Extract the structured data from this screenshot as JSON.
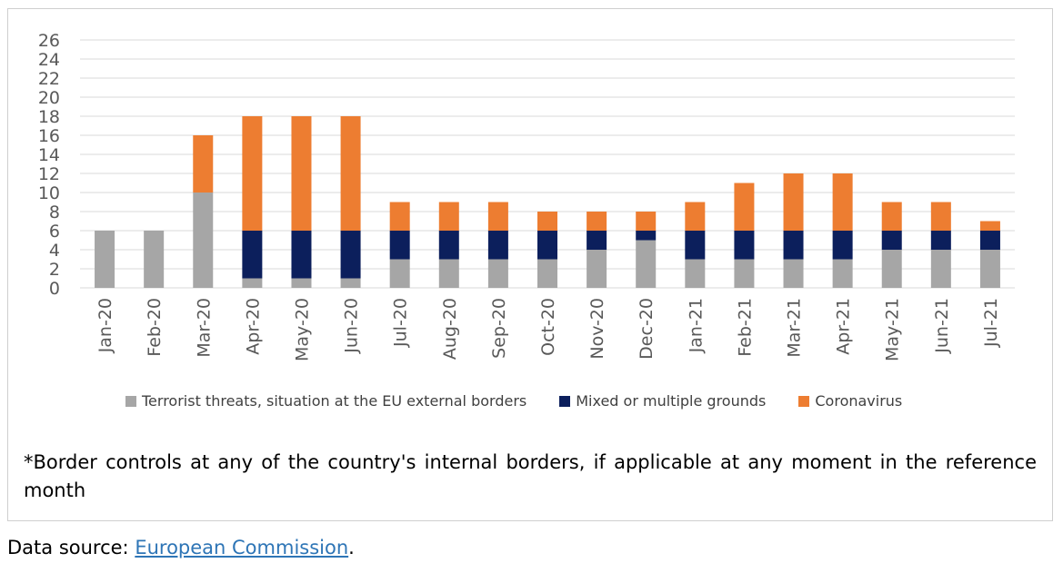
{
  "chart_data": {
    "type": "bar",
    "stacked": true,
    "categories": [
      "Jan-20",
      "Feb-20",
      "Mar-20",
      "Apr-20",
      "May-20",
      "Jun-20",
      "Jul-20",
      "Aug-20",
      "Sep-20",
      "Oct-20",
      "Nov-20",
      "Dec-20",
      "Jan-21",
      "Feb-21",
      "Mar-21",
      "Apr-21",
      "May-21",
      "Jun-21",
      "Jul-21"
    ],
    "series": [
      {
        "name": "Terrorist threats, situation at the EU external borders",
        "color": "#a6a6a6",
        "values": [
          6,
          6,
          10,
          1,
          1,
          1,
          3,
          3,
          3,
          3,
          4,
          5,
          3,
          3,
          3,
          3,
          4,
          4,
          4
        ]
      },
      {
        "name": "Mixed or multiple grounds",
        "color": "#0c1f5c",
        "values": [
          0,
          0,
          0,
          5,
          5,
          5,
          3,
          3,
          3,
          3,
          2,
          1,
          3,
          3,
          3,
          3,
          2,
          2,
          2
        ]
      },
      {
        "name": "Coronavirus",
        "color": "#ed7d31",
        "values": [
          0,
          0,
          6,
          12,
          12,
          12,
          3,
          3,
          3,
          2,
          2,
          2,
          3,
          5,
          6,
          6,
          3,
          3,
          1
        ]
      }
    ],
    "ylim": [
      0,
      26
    ],
    "yticks": [
      "0",
      "2",
      "4",
      "6",
      "8",
      "10",
      "12",
      "14",
      "16",
      "18",
      "20",
      "22",
      "24",
      "26"
    ],
    "grid": true,
    "legend_position": "bottom"
  },
  "footnote": "*Border controls at any of the country's internal borders, if applicable at any moment in the reference month",
  "source": {
    "prefix": "Data source: ",
    "link_text": "European Commission",
    "suffix": "."
  }
}
